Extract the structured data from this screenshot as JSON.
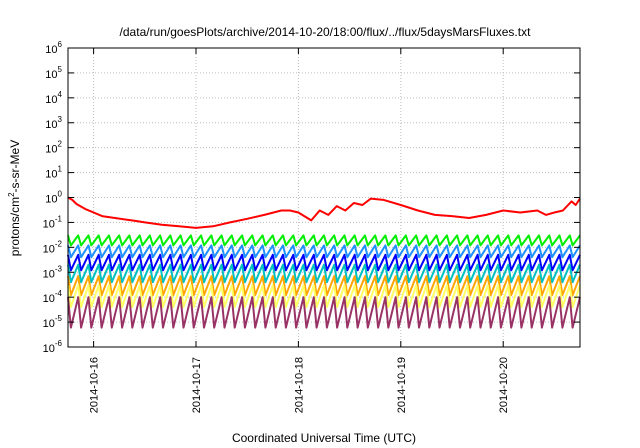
{
  "chart_data": {
    "type": "line",
    "title": "/data/run/goesPlots/archive/2014-10-20/18:00/flux/../flux/5daysMarsFluxes.txt",
    "xlabel": "Coordinated Universal Time (UTC)",
    "ylabel": {
      "base": "protons/cm",
      "sup": "2",
      "rest": "-s-sr-MeV"
    },
    "yscale": "log",
    "ylim": [
      1e-06,
      1000000.0
    ],
    "y_ticks": [
      {
        "value": 1e-06,
        "base": "10",
        "exp": "-6"
      },
      {
        "value": 1e-05,
        "base": "10",
        "exp": "-5"
      },
      {
        "value": 0.0001,
        "base": "10",
        "exp": "-4"
      },
      {
        "value": 0.001,
        "base": "10",
        "exp": "-3"
      },
      {
        "value": 0.01,
        "base": "10",
        "exp": "-2"
      },
      {
        "value": 0.1,
        "base": "10",
        "exp": "-1"
      },
      {
        "value": 1,
        "base": "10",
        "exp": "0"
      },
      {
        "value": 10,
        "base": "10",
        "exp": "1"
      },
      {
        "value": 100,
        "base": "10",
        "exp": "2"
      },
      {
        "value": 1000,
        "base": "10",
        "exp": "3"
      },
      {
        "value": 10000,
        "base": "10",
        "exp": "4"
      },
      {
        "value": 100000,
        "base": "10",
        "exp": "5"
      },
      {
        "value": 1000000,
        "base": "10",
        "exp": "6"
      }
    ],
    "xlim": [
      "2014-10-15T18:00",
      "2014-10-20T18:00"
    ],
    "x_ticks": [
      {
        "value": "2014-10-16T00:00",
        "label": "2014-10-16"
      },
      {
        "value": "2014-10-17T00:00",
        "label": "2014-10-17"
      },
      {
        "value": "2014-10-18T00:00",
        "label": "2014-10-18"
      },
      {
        "value": "2014-10-19T00:00",
        "label": "2014-10-19"
      },
      {
        "value": "2014-10-20T00:00",
        "label": "2014-10-20"
      }
    ],
    "grid": true,
    "series": [
      {
        "color": "#ff0000",
        "line_width": 2,
        "x": [
          "2014-10-15T18:00",
          "2014-10-15T19:00",
          "2014-10-15T20:00",
          "2014-10-15T22:00",
          "2014-10-16T00:00",
          "2014-10-16T02:00",
          "2014-10-16T05:00",
          "2014-10-16T09:00",
          "2014-10-16T12:00",
          "2014-10-16T16:00",
          "2014-10-16T20:00",
          "2014-10-17T00:00",
          "2014-10-17T04:00",
          "2014-10-17T08:00",
          "2014-10-17T12:00",
          "2014-10-17T16:00",
          "2014-10-17T20:00",
          "2014-10-17T22:00",
          "2014-10-18T00:00",
          "2014-10-18T03:00",
          "2014-10-18T05:00",
          "2014-10-18T07:00",
          "2014-10-18T09:00",
          "2014-10-18T11:00",
          "2014-10-18T13:00",
          "2014-10-18T15:00",
          "2014-10-18T17:00",
          "2014-10-18T20:00",
          "2014-10-19T00:00",
          "2014-10-19T04:00",
          "2014-10-19T08:00",
          "2014-10-19T12:00",
          "2014-10-19T16:00",
          "2014-10-19T20:00",
          "2014-10-20T00:00",
          "2014-10-20T04:00",
          "2014-10-20T08:00",
          "2014-10-20T10:00",
          "2014-10-20T12:00",
          "2014-10-20T14:00",
          "2014-10-20T16:00",
          "2014-10-20T17:00",
          "2014-10-20T18:00"
        ],
        "values": [
          1.0,
          0.8,
          0.55,
          0.35,
          0.25,
          0.18,
          0.15,
          0.12,
          0.1,
          0.08,
          0.07,
          0.06,
          0.07,
          0.1,
          0.14,
          0.2,
          0.3,
          0.3,
          0.25,
          0.12,
          0.3,
          0.2,
          0.45,
          0.3,
          0.6,
          0.5,
          0.9,
          0.8,
          0.5,
          0.3,
          0.2,
          0.18,
          0.15,
          0.2,
          0.3,
          0.25,
          0.3,
          0.2,
          0.25,
          0.3,
          0.7,
          0.5,
          0.9
        ]
      },
      {
        "color": "#00ee00",
        "line_width": 2,
        "sawtooth_high": 0.03,
        "sawtooth_low": 0.012
      },
      {
        "color": "#1e90ff",
        "line_width": 2,
        "sawtooth_high": 0.012,
        "sawtooth_low": 0.004
      },
      {
        "color": "#0000ff",
        "line_width": 2,
        "sawtooth_high": 0.005,
        "sawtooth_low": 0.0012
      },
      {
        "color": "#00c0c0",
        "line_width": 2,
        "sawtooth_high": 0.002,
        "sawtooth_low": 0.0004
      },
      {
        "color": "#ffa500",
        "line_width": 2,
        "sawtooth_high": 0.0007,
        "sawtooth_low": 0.00012
      },
      {
        "color": "#ffff66",
        "line_width": 2,
        "sawtooth_high": 0.0003,
        "sawtooth_low": 4e-05
      },
      {
        "color": "#993366",
        "line_width": 2,
        "sawtooth_high": 0.0001,
        "sawtooth_low": 6e-06
      }
    ],
    "sawtooth_cycles": 50
  }
}
